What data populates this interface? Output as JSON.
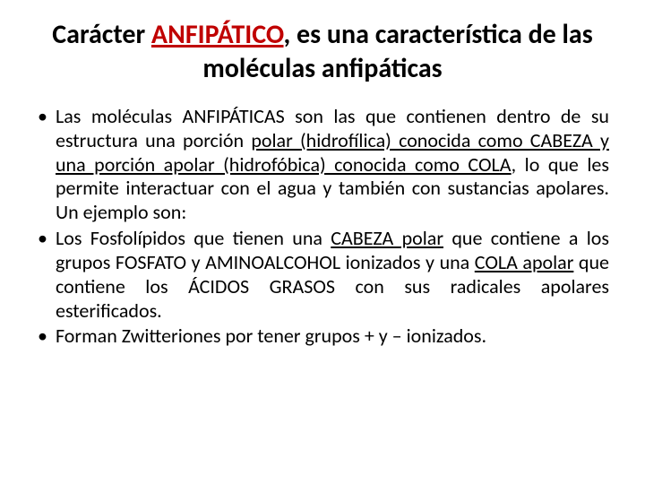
{
  "title": {
    "part1": "Carácter ",
    "highlight": "ANFIPÁTICO",
    "part2": ", es una característica de las moléculas anfipáticas"
  },
  "bullets": [
    {
      "seg1": "Las moléculas ANFIPÁTICAS son las que  contienen dentro de su estructura una porción  ",
      "u1": "polar (hidrofílica) conocida como CABEZA y una porción apolar (hidrofóbica) conocida como COLA",
      "seg2": ", lo que les permite interactuar  con el agua y también  con sustancias apolares.  Un ejemplo son:"
    },
    {
      "seg1": "Los Fosfolípidos que tienen una ",
      "u1": "CABEZA polar",
      "seg2": " que contiene a los grupos FOSFATO y  AMINOALCOHOL ionizados y una ",
      "u2": "COLA apolar",
      "seg3": " que contiene los ÁCIDOS GRASOS con sus radicales apolares  esterificados."
    },
    {
      "seg1": "Forman Zwitteriones por tener grupos  + y – ionizados."
    }
  ],
  "colors": {
    "highlight": "#c00000",
    "text": "#000000",
    "background": "#ffffff"
  },
  "typography": {
    "title_fontsize": 30,
    "body_fontsize": 22,
    "font_family": "Calibri"
  }
}
